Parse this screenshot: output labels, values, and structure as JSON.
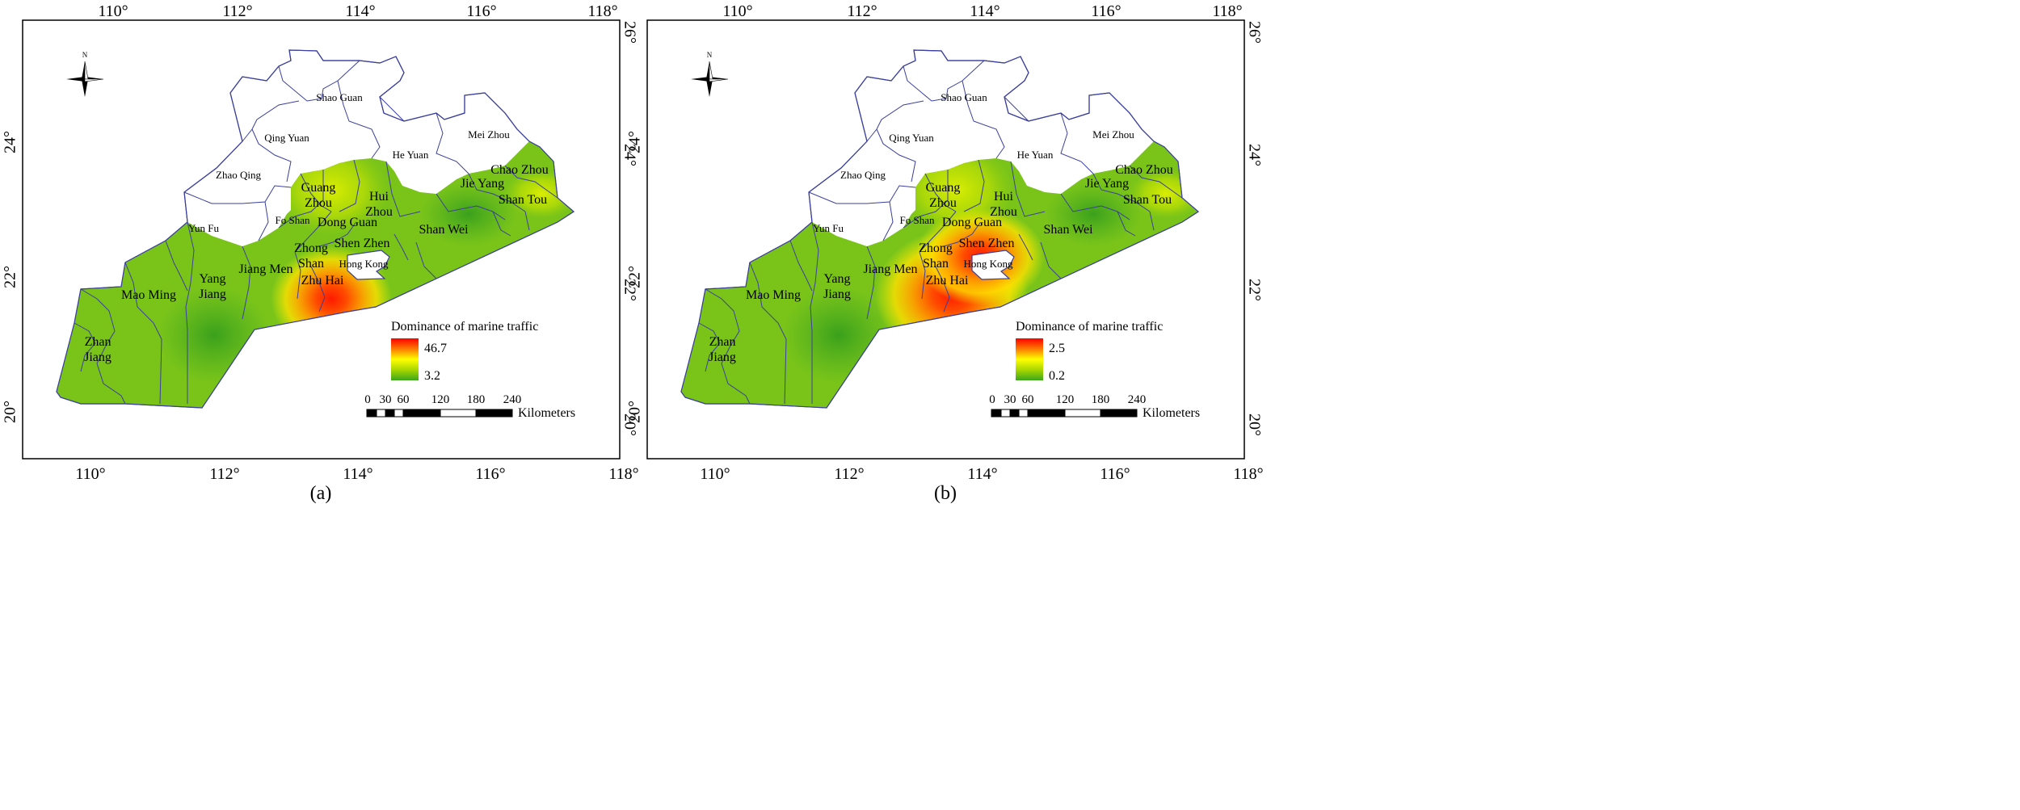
{
  "maps": [
    {
      "panel_label": "(a)",
      "legend": {
        "title": "Dominance of marine traffic",
        "max": "46.7",
        "min": "3.2"
      },
      "hotspot": "zhuhai"
    },
    {
      "panel_label": "(b)",
      "legend": {
        "title": "Dominance of marine traffic",
        "max": "2.5",
        "min": "0.2"
      },
      "hotspot": "shenzhen-zhuhai"
    }
  ],
  "axes": {
    "lon_labels": [
      "110°",
      "112°",
      "114°",
      "116°",
      "118°"
    ],
    "lat_labels": [
      "20°",
      "22°",
      "24°",
      "26°"
    ]
  },
  "north_label": "N",
  "scale_bar": {
    "ticks": [
      "0",
      "30",
      "60",
      "120",
      "180",
      "240"
    ],
    "unit": "Kilometers"
  },
  "cities": [
    {
      "id": "shao-guan",
      "lines": [
        "Shao Guan"
      ]
    },
    {
      "id": "qing-yuan",
      "lines": [
        "Qing Yuan"
      ]
    },
    {
      "id": "he-yuan",
      "lines": [
        "He Yuan"
      ]
    },
    {
      "id": "mei-zhou",
      "lines": [
        "Mei Zhou"
      ]
    },
    {
      "id": "zhao-qing",
      "lines": [
        "Zhao Qing"
      ]
    },
    {
      "id": "chao-zhou",
      "lines": [
        "Chao Zhou"
      ]
    },
    {
      "id": "jie-yang",
      "lines": [
        "Jie Yang"
      ]
    },
    {
      "id": "shan-tou",
      "lines": [
        "Shan Tou"
      ]
    },
    {
      "id": "guang-zhou",
      "lines": [
        "Guang",
        "Zhou"
      ]
    },
    {
      "id": "hui-zhou",
      "lines": [
        "Hui",
        "Zhou"
      ]
    },
    {
      "id": "fo-shan",
      "lines": [
        "Fo Shan"
      ]
    },
    {
      "id": "dong-guan",
      "lines": [
        "Dong Guan"
      ]
    },
    {
      "id": "yun-fu",
      "lines": [
        "Yun Fu"
      ]
    },
    {
      "id": "shan-wei",
      "lines": [
        "Shan Wei"
      ]
    },
    {
      "id": "shen-zhen",
      "lines": [
        "Shen Zhen"
      ]
    },
    {
      "id": "zhong-shan",
      "lines": [
        "Zhong",
        "Shan"
      ]
    },
    {
      "id": "hong-kong",
      "lines": [
        "Hong Kong"
      ]
    },
    {
      "id": "jiang-men",
      "lines": [
        "Jiang Men"
      ]
    },
    {
      "id": "yang-jiang",
      "lines": [
        "Yang",
        "Jiang"
      ]
    },
    {
      "id": "mao-ming",
      "lines": [
        "Mao Ming"
      ]
    },
    {
      "id": "zhu-hai",
      "lines": [
        "Zhu Hai"
      ]
    },
    {
      "id": "zhan-jiang",
      "lines": [
        "Zhan",
        "Jiang"
      ]
    }
  ]
}
